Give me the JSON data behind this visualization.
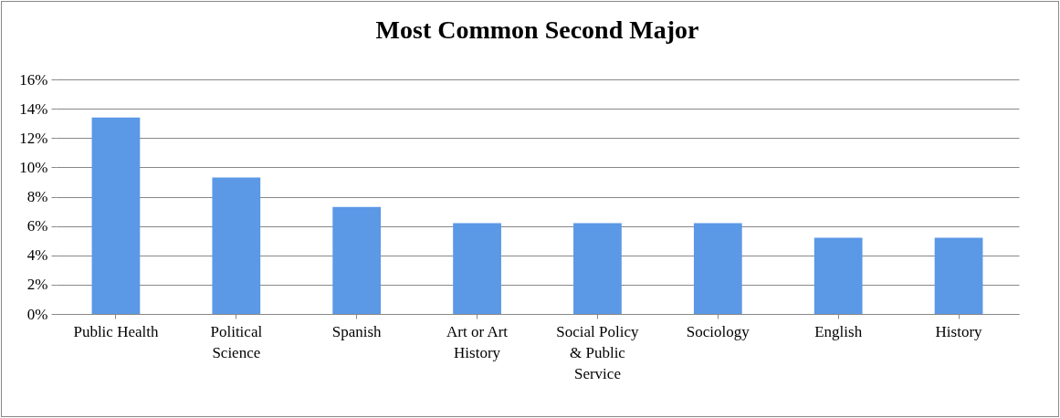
{
  "chart_data": {
    "type": "bar",
    "title": "Most Common Second Major",
    "categories": [
      "Public Health",
      "Political Science",
      "Spanish",
      "Art or Art History",
      "Social Policy & Public Service",
      "Sociology",
      "English",
      "History"
    ],
    "values": [
      0.134,
      0.093,
      0.073,
      0.062,
      0.062,
      0.062,
      0.052,
      0.052
    ],
    "color": "#5b98e6",
    "ylim": [
      0,
      0.16
    ],
    "yticks": [
      {
        "value": 0,
        "label": "0%"
      },
      {
        "value": 0.02,
        "label": "2%"
      },
      {
        "value": 0.04,
        "label": "4%"
      },
      {
        "value": 0.06,
        "label": "6%"
      },
      {
        "value": 0.08,
        "label": "8%"
      },
      {
        "value": 0.1,
        "label": "10%"
      },
      {
        "value": 0.12,
        "label": "12%"
      },
      {
        "value": 0.14,
        "label": "14%"
      },
      {
        "value": 0.16,
        "label": "16%"
      }
    ],
    "grid": true
  }
}
